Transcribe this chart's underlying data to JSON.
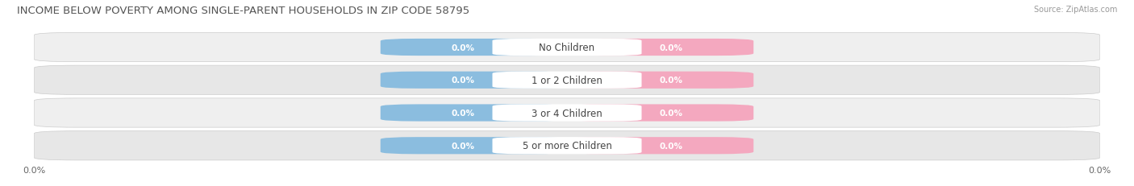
{
  "title": "INCOME BELOW POVERTY AMONG SINGLE-PARENT HOUSEHOLDS IN ZIP CODE 58795",
  "source_text": "Source: ZipAtlas.com",
  "categories": [
    "No Children",
    "1 or 2 Children",
    "3 or 4 Children",
    "5 or more Children"
  ],
  "father_values": [
    0.0,
    0.0,
    0.0,
    0.0
  ],
  "mother_values": [
    0.0,
    0.0,
    0.0,
    0.0
  ],
  "father_color": "#8bbddf",
  "mother_color": "#f4a8bf",
  "row_bg_color": "#f0f0f0",
  "row_stripe_color": "#e8e8e8",
  "pill_bg_color": "#e2e2e2",
  "title_fontsize": 9.5,
  "source_fontsize": 7,
  "label_fontsize": 8.5,
  "value_fontsize": 7.5,
  "tick_fontsize": 8,
  "figure_width": 14.06,
  "figure_height": 2.32,
  "dpi": 100
}
